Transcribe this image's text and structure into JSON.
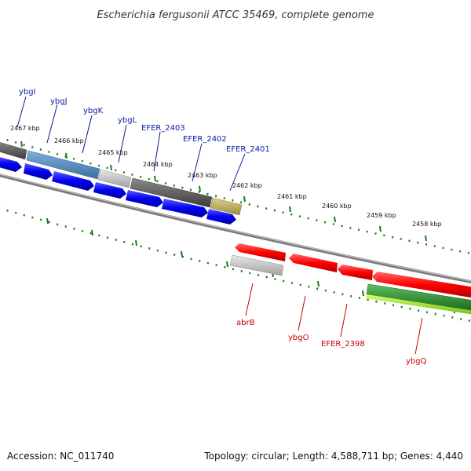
{
  "title": "Escherichia fergusonii ATCC 35469, complete genome",
  "footer": {
    "accession": "Accession: NC_011740",
    "summary": "Topology: circular; Length: 4,588,711 bp; Genes: 4,440"
  },
  "ticks": [
    "2467 kbp",
    "2466 kbp",
    "2465 kbp",
    "2464 kbp",
    "2463 kbp",
    "2462 kbp",
    "2461 kbp",
    "2460 kbp",
    "2459 kbp",
    "2458 kbp"
  ],
  "genes_forward": [
    "ybgI",
    "ybgJ",
    "ybgK",
    "ybgL",
    "EFER_2403",
    "EFER_2402",
    "EFER_2401"
  ],
  "genes_reverse": [
    "abrB",
    "ybgO",
    "EFER_2398",
    "ybgQ"
  ],
  "colors": {
    "forward_cds": "#0000ff",
    "reverse_cds": "#ff0000",
    "backbone": "#808080",
    "tick": "#1a7a1a",
    "fwd_label": "#0a1aa0",
    "rev_label": "#cc0000",
    "cog_blue": "#4682b4",
    "cog_gray": "#555555",
    "cog_light": "#c0c0c0",
    "cog_olive": "#b8a860",
    "cog_green": "#2e8b2e",
    "cog_lime": "#99ee22"
  }
}
